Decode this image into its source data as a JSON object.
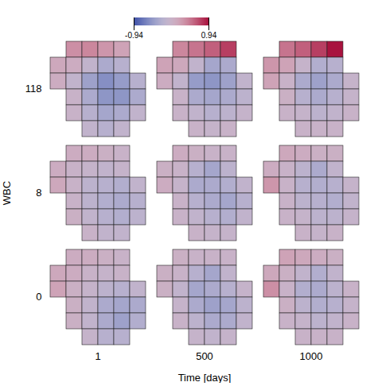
{
  "chart_data": {
    "type": "heatmap_grid",
    "xlabel": "Time [days]",
    "ylabel": "WBC",
    "x": [
      1,
      500,
      1000
    ],
    "y": [
      118,
      8,
      0
    ],
    "colorbar": {
      "range": [
        -0.94,
        0.94
      ],
      "ticks": [
        -0.94,
        0.94
      ]
    },
    "panels": [
      {
        "time": 1,
        "wbc": 118,
        "cells": [
          [
            null,
            0.35,
            0.4,
            0.3,
            0.2,
            null
          ],
          [
            0.15,
            0.1,
            -0.1,
            -0.3,
            -0.2,
            null
          ],
          [
            0.1,
            -0.1,
            -0.4,
            -0.55,
            -0.45,
            -0.2
          ],
          [
            null,
            0.0,
            -0.3,
            -0.5,
            -0.5,
            -0.3
          ],
          [
            null,
            0.0,
            -0.2,
            -0.35,
            -0.3,
            -0.1
          ],
          [
            null,
            null,
            -0.1,
            -0.2,
            -0.1,
            null
          ]
        ]
      },
      {
        "time": 500,
        "wbc": 118,
        "cells": [
          [
            null,
            0.4,
            0.5,
            0.6,
            0.75,
            null
          ],
          [
            0.2,
            0.15,
            -0.1,
            -0.35,
            -0.3,
            null
          ],
          [
            0.1,
            -0.1,
            -0.45,
            -0.5,
            -0.4,
            -0.1
          ],
          [
            null,
            0.0,
            -0.3,
            -0.35,
            -0.3,
            -0.15
          ],
          [
            null,
            0.0,
            -0.1,
            -0.2,
            -0.15,
            -0.05
          ],
          [
            null,
            null,
            0.0,
            -0.05,
            0.0,
            null
          ]
        ]
      },
      {
        "time": 1000,
        "wbc": 118,
        "cells": [
          [
            null,
            0.5,
            0.6,
            0.75,
            0.94,
            null
          ],
          [
            0.3,
            0.2,
            -0.05,
            -0.25,
            -0.2,
            null
          ],
          [
            0.2,
            0.0,
            -0.3,
            -0.4,
            -0.3,
            -0.05
          ],
          [
            null,
            0.05,
            -0.2,
            -0.3,
            -0.2,
            -0.05
          ],
          [
            null,
            0.0,
            -0.05,
            -0.15,
            -0.1,
            0.0
          ],
          [
            null,
            null,
            0.0,
            0.0,
            0.0,
            null
          ]
        ]
      },
      {
        "time": 1,
        "wbc": 8,
        "cells": [
          [
            null,
            0.1,
            0.1,
            0.05,
            0.0,
            null
          ],
          [
            0.1,
            0.0,
            -0.05,
            -0.1,
            -0.05,
            null
          ],
          [
            0.15,
            0.0,
            -0.15,
            -0.2,
            -0.25,
            -0.1
          ],
          [
            null,
            0.0,
            -0.15,
            -0.25,
            -0.3,
            -0.2
          ],
          [
            null,
            0.05,
            -0.1,
            -0.2,
            -0.25,
            -0.15
          ],
          [
            null,
            null,
            0.0,
            -0.1,
            -0.1,
            null
          ]
        ]
      },
      {
        "time": 500,
        "wbc": 8,
        "cells": [
          [
            null,
            0.1,
            0.05,
            0.0,
            0.0,
            null
          ],
          [
            0.05,
            0.0,
            -0.2,
            -0.35,
            -0.15,
            null
          ],
          [
            0.1,
            -0.05,
            -0.3,
            -0.3,
            -0.25,
            -0.1
          ],
          [
            null,
            0.0,
            -0.2,
            -0.3,
            -0.35,
            -0.2
          ],
          [
            null,
            0.0,
            -0.1,
            -0.2,
            -0.25,
            -0.1
          ],
          [
            null,
            null,
            0.0,
            -0.05,
            -0.05,
            null
          ]
        ]
      },
      {
        "time": 1000,
        "wbc": 8,
        "cells": [
          [
            null,
            0.15,
            0.1,
            0.05,
            0.05,
            null
          ],
          [
            0.1,
            0.0,
            -0.15,
            -0.3,
            -0.1,
            null
          ],
          [
            0.3,
            0.0,
            -0.2,
            -0.25,
            -0.2,
            -0.05
          ],
          [
            null,
            0.0,
            -0.15,
            -0.2,
            -0.25,
            -0.1
          ],
          [
            null,
            0.0,
            -0.05,
            -0.15,
            -0.15,
            -0.05
          ],
          [
            null,
            null,
            0.0,
            -0.05,
            0.0,
            null
          ]
        ]
      },
      {
        "time": 1,
        "wbc": 0,
        "cells": [
          [
            null,
            0.1,
            0.1,
            0.05,
            0.0,
            null
          ],
          [
            0.15,
            0.1,
            0.0,
            -0.05,
            0.0,
            null
          ],
          [
            0.2,
            0.05,
            -0.05,
            -0.15,
            -0.2,
            -0.1
          ],
          [
            null,
            0.05,
            -0.1,
            -0.3,
            -0.35,
            -0.3
          ],
          [
            null,
            0.05,
            -0.1,
            -0.3,
            -0.4,
            -0.25
          ],
          [
            null,
            null,
            -0.05,
            -0.2,
            -0.2,
            null
          ]
        ]
      },
      {
        "time": 500,
        "wbc": 0,
        "cells": [
          [
            null,
            0.05,
            0.0,
            0.0,
            0.0,
            null
          ],
          [
            0.05,
            0.0,
            -0.2,
            -0.35,
            -0.1,
            null
          ],
          [
            0.05,
            -0.1,
            -0.35,
            -0.3,
            -0.2,
            -0.05
          ],
          [
            null,
            -0.05,
            -0.3,
            -0.4,
            -0.35,
            -0.15
          ],
          [
            null,
            0.0,
            -0.15,
            -0.3,
            -0.3,
            -0.1
          ],
          [
            null,
            null,
            -0.05,
            -0.1,
            -0.05,
            null
          ]
        ]
      },
      {
        "time": 1000,
        "wbc": 0,
        "cells": [
          [
            null,
            0.2,
            0.15,
            0.1,
            0.05,
            null
          ],
          [
            0.15,
            0.05,
            -0.1,
            -0.25,
            -0.1,
            null
          ],
          [
            0.35,
            0.0,
            -0.25,
            -0.3,
            -0.15,
            0.0
          ],
          [
            null,
            0.05,
            -0.15,
            -0.25,
            -0.2,
            -0.05
          ],
          [
            null,
            0.0,
            -0.05,
            -0.15,
            -0.1,
            0.0
          ],
          [
            null,
            null,
            0.0,
            0.0,
            0.0,
            null
          ]
        ]
      }
    ]
  }
}
